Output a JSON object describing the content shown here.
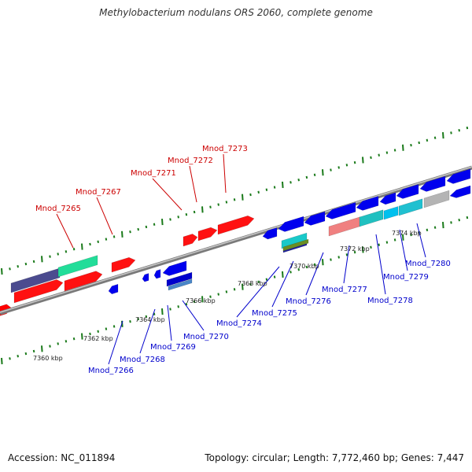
{
  "title": "Methylobacterium nodulans ORS 2060, complete genome",
  "footer": {
    "accession": "Accession: NC_011894",
    "summary": "Topology: circular; Length: 7,772,460 bp; Genes: 7,447"
  },
  "colors": {
    "forward_gene": "#ff0000",
    "reverse_gene": "#0000ee",
    "label_forward": "#cc0000",
    "label_reverse": "#0000cc",
    "backbone": "#8c8c8c",
    "ticks": "#1a7a1a",
    "scale_text": "#222222"
  },
  "scale_labels": [
    "7360 kbp",
    "7362 kbp",
    "7364 kbp",
    "7366 kbp",
    "7368 kbp",
    "7370 kbp",
    "7372 kbp",
    "7374 kbp"
  ],
  "top_labels": [
    "Mnod_7265",
    "Mnod_7267",
    "Mnod_7271",
    "Mnod_7272",
    "Mnod_7273"
  ],
  "bottom_labels": [
    "Mnod_7266",
    "Mnod_7268",
    "Mnod_7269",
    "Mnod_7270",
    "Mnod_7274",
    "Mnod_7275",
    "Mnod_7276",
    "Mnod_7277",
    "Mnod_7278",
    "Mnod_7279",
    "Mnod_7280"
  ]
}
